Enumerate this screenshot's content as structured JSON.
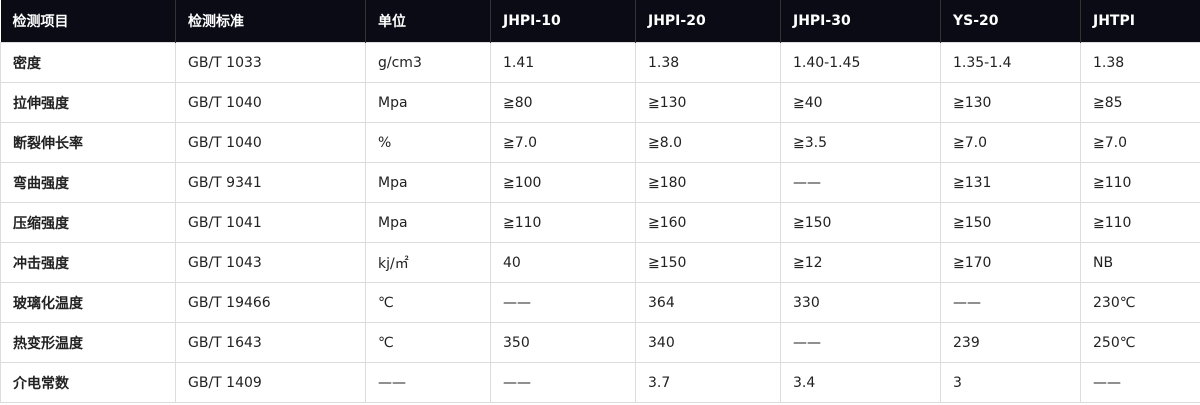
{
  "table": {
    "header": [
      "检测项目",
      "检测标准",
      "单位",
      "JHPI-10",
      "JHPI-20",
      "JHPI-30",
      "YS-20",
      "JHTPI"
    ],
    "rows": [
      [
        "密度",
        "GB/T 1033",
        "g/cm3",
        "1.41",
        "1.38",
        "1.40-1.45",
        "1.35-1.4",
        "1.38"
      ],
      [
        "拉伸强度",
        "GB/T 1040",
        "Mpa",
        "≧80",
        "≧130",
        "≧40",
        "≧130",
        "≧85"
      ],
      [
        "断裂伸长率",
        "GB/T 1040",
        "%",
        "≧7.0",
        "≧8.0",
        "≧3.5",
        "≧7.0",
        "≧7.0"
      ],
      [
        "弯曲强度",
        "GB/T 9341",
        "Mpa",
        "≧100",
        "≧180",
        "——",
        "≧131",
        "≧110"
      ],
      [
        "压缩强度",
        "GB/T 1041",
        "Mpa",
        "≧110",
        "≧160",
        "≧150",
        "≧150",
        "≧110"
      ],
      [
        "冲击强度",
        "GB/T 1043",
        "kj/㎡",
        "40",
        "≧150",
        "≧12",
        "≧170",
        "NB"
      ],
      [
        "玻璃化温度",
        "GB/T 19466",
        "℃",
        "——",
        "364",
        "330",
        "——",
        "230℃"
      ],
      [
        "热变形温度",
        "GB/T 1643",
        "℃",
        "350",
        "340",
        "——",
        "239",
        "250℃"
      ],
      [
        "介电常数",
        "GB/T 1409",
        "——",
        "——",
        "3.7",
        "3.4",
        "3",
        "——"
      ]
    ]
  }
}
